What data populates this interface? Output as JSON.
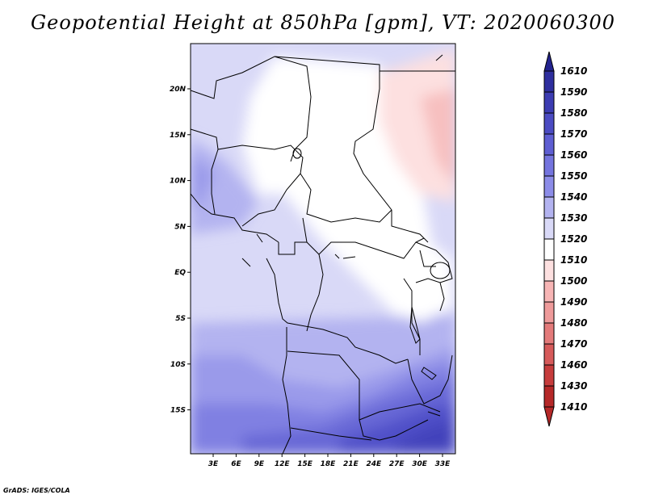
{
  "title": "Geopotential Height at 850hPa [gpm], VT: 2020060300",
  "credit": "GrADS: IGES/COLA",
  "map": {
    "lat_ticks": [
      "20N",
      "15N",
      "10N",
      "5N",
      "EQ",
      "5S",
      "10S",
      "15S"
    ],
    "lon_ticks": [
      "3E",
      "6E",
      "9E",
      "12E",
      "15E",
      "18E",
      "21E",
      "24E",
      "27E",
      "30E",
      "33E"
    ],
    "field": "Geopotential Height at 850hPa",
    "units": "gpm"
  },
  "colorbar": {
    "levels": [
      {
        "label": "1610",
        "color": "#23238f"
      },
      {
        "label": "1590",
        "color": "#2e2e9e"
      },
      {
        "label": "1580",
        "color": "#3c3cb2"
      },
      {
        "label": "1570",
        "color": "#4b4bc2"
      },
      {
        "label": "1560",
        "color": "#5e5ed2"
      },
      {
        "label": "1550",
        "color": "#7474de"
      },
      {
        "label": "1540",
        "color": "#8c8ce8"
      },
      {
        "label": "1530",
        "color": "#b3b3f0"
      },
      {
        "label": "1520",
        "color": "#d9d9f7"
      },
      {
        "label": "1510",
        "color": "#ffffff"
      },
      {
        "label": "1500",
        "color": "#fde0e0"
      },
      {
        "label": "1490",
        "color": "#f7b5b5"
      },
      {
        "label": "1480",
        "color": "#ee9a9a"
      },
      {
        "label": "1470",
        "color": "#e37a7a"
      },
      {
        "label": "1460",
        "color": "#d65a5a"
      },
      {
        "label": "1430",
        "color": "#c63c3c"
      },
      {
        "label": "1410",
        "color": "#b52828"
      }
    ]
  }
}
